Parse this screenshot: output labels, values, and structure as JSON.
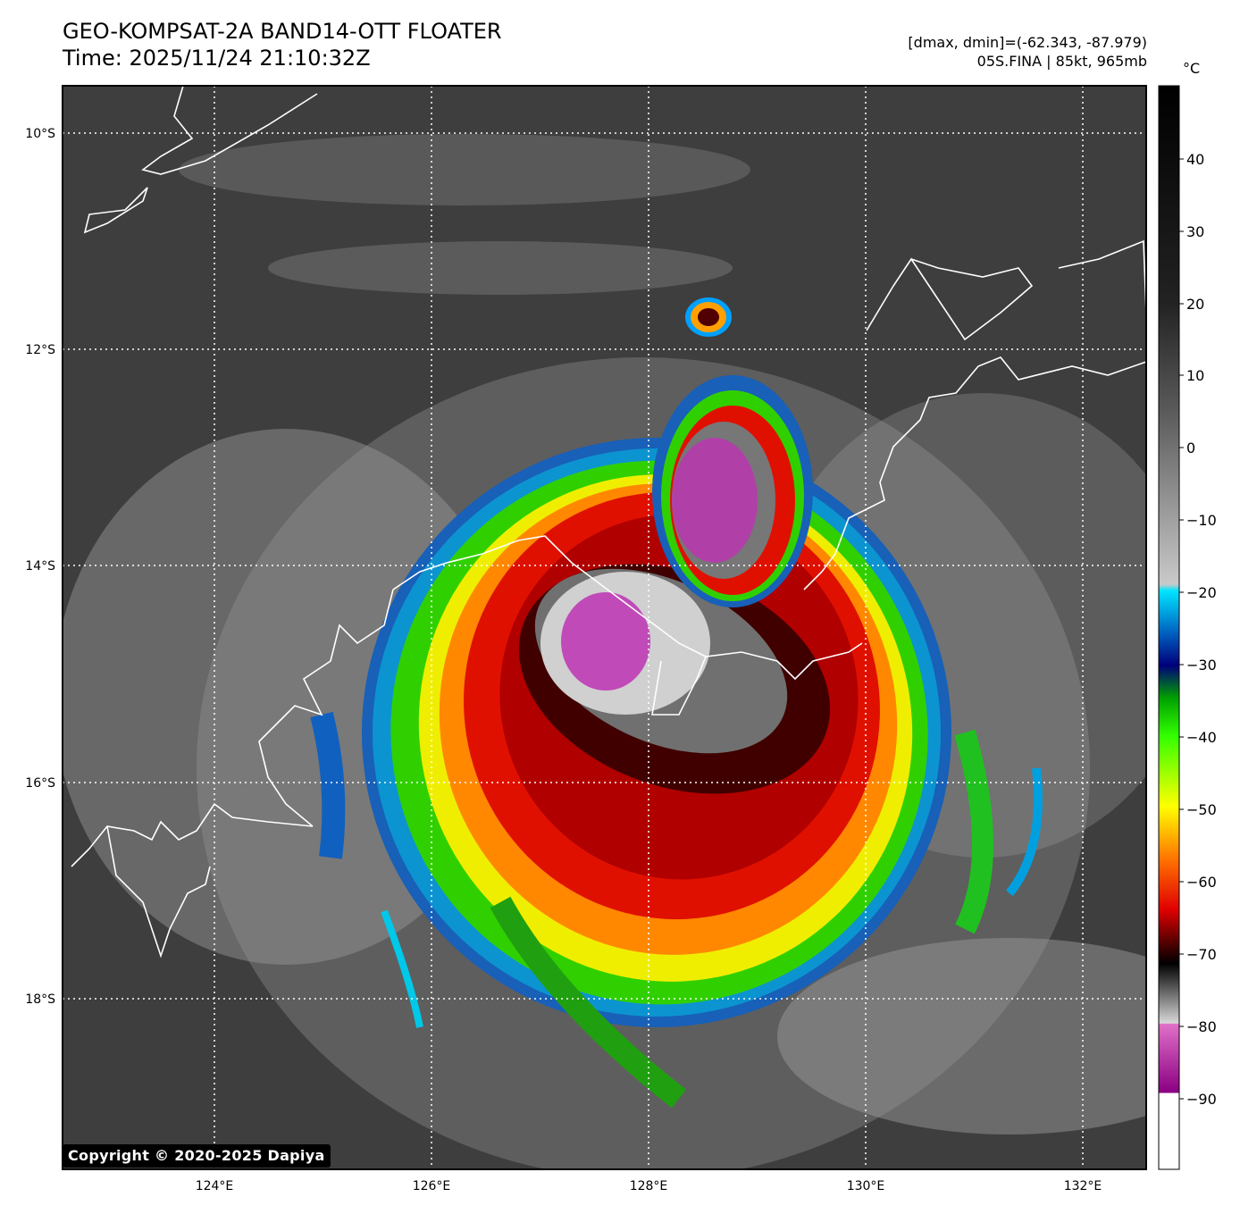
{
  "header": {
    "title_line1": "GEO-KOMPSAT-2A BAND14-OTT FLOATER",
    "title_line2": "Time: 2025/11/24 21:10:32Z",
    "range_text": "[dmax, dmin]=(-62.343, -87.979)",
    "storm_text": "05S.FINA | 85kt, 965mb"
  },
  "colorbar": {
    "unit": "°C",
    "ticks": [
      "40",
      "30",
      "20",
      "10",
      "0",
      "−10",
      "−20",
      "−30",
      "−40",
      "−50",
      "−60",
      "−70",
      "−80",
      "−90"
    ]
  },
  "map": {
    "lat_labels": [
      "10°S",
      "12°S",
      "14°S",
      "16°S",
      "18°S"
    ],
    "lon_labels": [
      "124°E",
      "126°E",
      "128°E",
      "130°E",
      "132°E"
    ],
    "gridlines": true
  },
  "copyright": "Copyright © 2020-2025 Dapiya"
}
